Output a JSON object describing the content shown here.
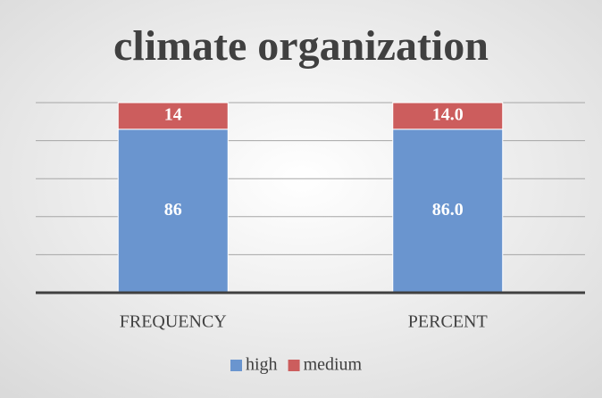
{
  "chart_data": {
    "type": "stacked_bar",
    "title": "climate organization",
    "categories": [
      "FREQUENCY",
      "PERCENT"
    ],
    "series": [
      {
        "name": "high",
        "color": "#6a95cf",
        "values": [
          86,
          86
        ],
        "value_labels": [
          "86",
          "86.0"
        ]
      },
      {
        "name": "medium",
        "color": "#cc5d5d",
        "values": [
          14,
          14
        ],
        "value_labels": [
          "14",
          "14.0"
        ]
      }
    ],
    "ylim": [
      0,
      100
    ],
    "yticks": [
      0,
      20,
      40,
      60,
      80,
      100
    ],
    "grid": true,
    "legend": "bottom"
  }
}
